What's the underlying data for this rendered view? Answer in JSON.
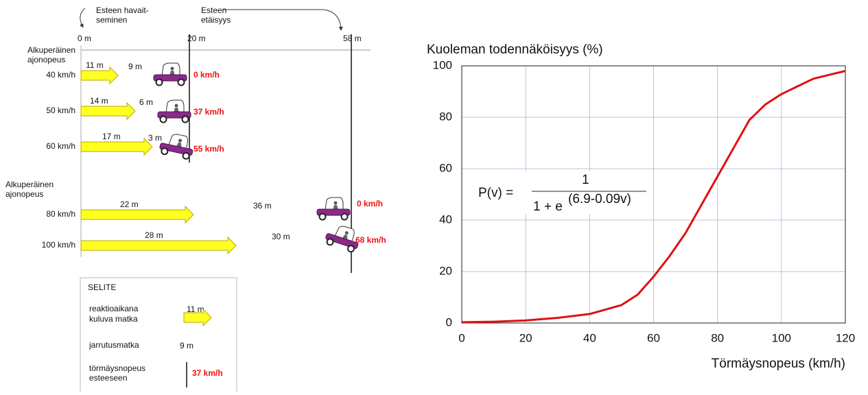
{
  "diagram": {
    "obstacle_detection": [
      "Esteen havait-",
      "seminen"
    ],
    "obstacle_distance": [
      "Esteen",
      "etäisyys"
    ],
    "distance_marks": [
      "0 m",
      "20 m",
      "58 m"
    ],
    "heading_1": [
      "Alkuperäinen",
      "ajonopeus"
    ],
    "heading_2": [
      "Alkuperäinen",
      "ajonopeus"
    ],
    "rows": [
      {
        "speed": "40 km/h",
        "reaction": "11 m",
        "braking": "9 m",
        "impact": "0 km/h"
      },
      {
        "speed": "50 km/h",
        "reaction": "14 m",
        "braking": "6 m",
        "impact": "37 km/h"
      },
      {
        "speed": "60 km/h",
        "reaction": "17 m",
        "braking": "3 m",
        "impact": "55 km/h"
      },
      {
        "speed": "80 km/h",
        "reaction": "22 m",
        "braking": "36 m",
        "impact": "0 km/h"
      },
      {
        "speed": "100 km/h",
        "reaction": "28 m",
        "braking": "30 m",
        "impact": "68 km/h"
      }
    ],
    "legend": {
      "title": "SELITE",
      "reaction_text": [
        "reaktioaikana",
        "kuluva matka"
      ],
      "reaction_example": "11 m",
      "braking_text": "jarrutusmatka",
      "braking_example": "9 m",
      "impact_text": [
        "törmäysnopeus",
        "esteeseen"
      ],
      "impact_example": "37 km/h"
    }
  },
  "chart_data": {
    "type": "line",
    "y_label": "Kuoleman todennäköisyys (%)",
    "x_label": "Törmäysnopeus (km/h)",
    "x": [
      0,
      10,
      20,
      30,
      40,
      50,
      55,
      60,
      65,
      70,
      75,
      80,
      85,
      90,
      95,
      100,
      105,
      110,
      115,
      120
    ],
    "series": [
      {
        "name": "P(v)",
        "color": "#dd1111",
        "values": [
          0.3,
          0.5,
          1,
          2,
          3.5,
          7,
          11,
          18,
          26,
          35,
          46,
          57,
          68,
          79,
          85,
          89,
          92,
          95,
          96.5,
          98
        ]
      }
    ],
    "xlim": [
      0,
      120
    ],
    "xticks": [
      0,
      20,
      40,
      60,
      80,
      100,
      120
    ],
    "ylim": [
      0,
      100
    ],
    "yticks": [
      0,
      20,
      40,
      60,
      80,
      100
    ],
    "grid": true,
    "annotation": {
      "lhs": "P(v) =",
      "numerator": "1",
      "denominator": "1 + e",
      "exponent": "(6.9-0.09v)"
    }
  }
}
